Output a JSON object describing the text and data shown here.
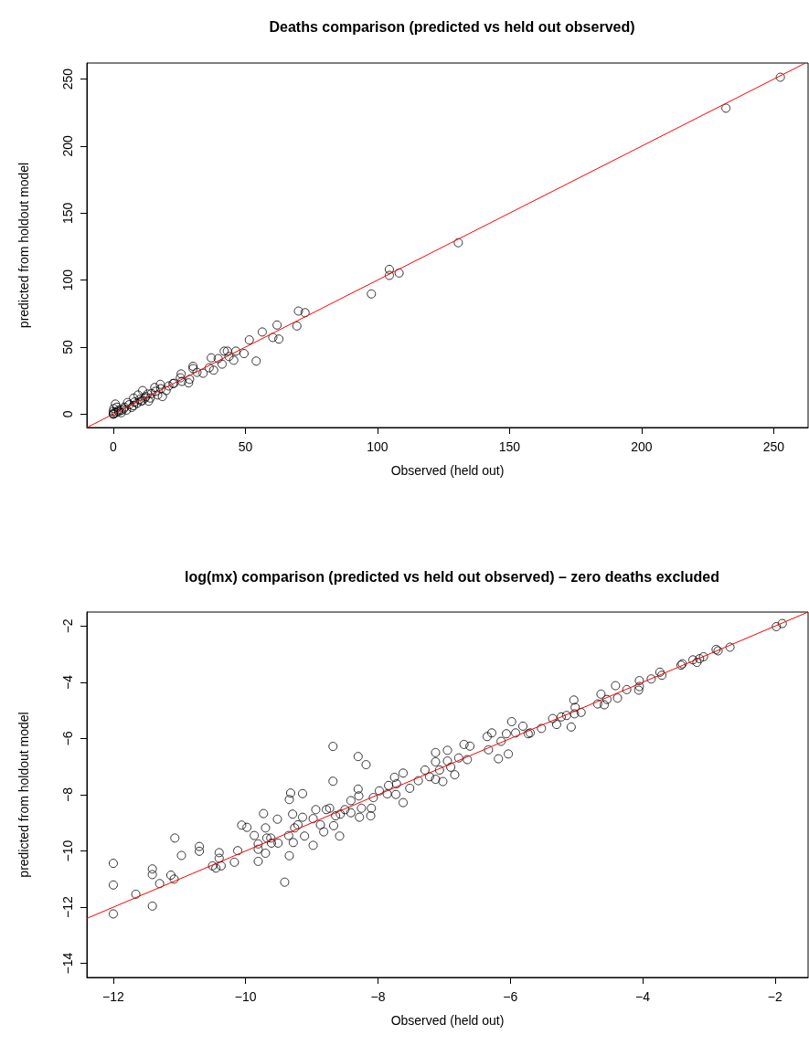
{
  "chart_data": [
    {
      "type": "scatter",
      "title": "Deaths comparison (predicted vs held out observed)",
      "xlabel": "Observed (held out)",
      "ylabel": "predicted from holdout model",
      "xlim": [
        -10,
        263
      ],
      "ylim": [
        -10,
        262
      ],
      "xticks": [
        0,
        50,
        100,
        150,
        200,
        250
      ],
      "yticks": [
        0,
        50,
        100,
        150,
        200,
        250
      ],
      "grid": false,
      "marker": "circle",
      "series": [
        {
          "color": "#000000",
          "x": [
            97.7,
            104.5,
            104.5,
            108.2,
            70.1,
            72.6,
            69.5,
            62,
            60.4,
            62.7,
            56.4,
            51.5,
            54.1,
            49.5,
            46.4,
            45.6,
            42,
            43.2,
            43.8,
            41.2,
            39.7,
            37.1,
            38,
            36.3,
            34,
            31.7,
            30.2,
            30.2,
            28.5,
            28.9,
            25.7,
            25.4,
            26,
            22.6,
            20,
            17.8,
            15.7,
            18.6,
            14.5,
            12.3,
            11.1,
            10.5,
            7.7,
            7.7,
            5.4,
            4.2,
            3.1,
            1.4,
            0.2,
            0.2,
            0,
            0.8,
            2,
            9.4,
            16.8,
            13.4,
            130.6,
            231.9,
            252.5,
            0,
            0,
            1,
            2,
            3,
            4,
            5,
            6,
            7,
            8,
            9,
            10,
            11,
            12,
            13,
            14,
            16,
            18,
            21,
            23
          ],
          "values": [
            89.7,
            108,
            103.5,
            105.3,
            76.9,
            75.7,
            65.8,
            66.5,
            57.2,
            56,
            61.3,
            55.4,
            39.6,
            45.2,
            47,
            40.2,
            47,
            47,
            43,
            37.3,
            41.4,
            42,
            32.8,
            34.6,
            30.5,
            31.2,
            35.7,
            34,
            23.3,
            26,
            30,
            27.1,
            24.4,
            22.8,
            17.6,
            22.2,
            19.9,
            13.1,
            15.4,
            13.1,
            17.6,
            9.7,
            12,
            6.3,
            8.6,
            5.2,
            2.9,
            5.2,
            4.1,
            0.7,
            0,
            7.5,
            1.8,
            14.3,
            14.3,
            9.7,
            127.9,
            228.3,
            251.4,
            0,
            2,
            1,
            3,
            1,
            4,
            3,
            7,
            5,
            9,
            8,
            11,
            10,
            12,
            15,
            12,
            17,
            19,
            21,
            23
          ]
        },
        {
          "type": "line",
          "color": "#ff0000",
          "x": [
            -10,
            262
          ],
          "values": [
            -10,
            262
          ],
          "marker": "none",
          "line_style": "solid"
        }
      ]
    },
    {
      "type": "scatter",
      "title": "log(mx) comparison (predicted vs held out observed) – zero deaths excluded",
      "xlabel": "Observed (held out)",
      "ylabel": "predicted from holdout model",
      "xlim": [
        -12.4,
        -1.5
      ],
      "ylim": [
        -14.5,
        -1.5
      ],
      "xticks": [
        -12,
        -10,
        -8,
        -6,
        -4,
        -2
      ],
      "yticks": [
        -14,
        -12,
        -10,
        -8,
        -6,
        -4,
        -2
      ],
      "grid": false,
      "marker": "circle",
      "series": [
        {
          "color": "#000000",
          "x": [
            -12,
            -12,
            -12,
            -11.66,
            -11.41,
            -11.41,
            -11.41,
            -11.3,
            -11.13,
            -11.08,
            -11.07,
            -10.97,
            -10.7,
            -10.7,
            -10.5,
            -10.45,
            -10.4,
            -10.4,
            -10.37,
            -10.17,
            -10.12,
            -10.06,
            -9.98,
            -9.87,
            -9.81,
            -9.81,
            -9.81,
            -9.73,
            -9.7,
            -9.7,
            -9.68,
            -9.61,
            -9.52,
            -9.62,
            -9.51,
            -9.41,
            -9.34,
            -9.34,
            -9.32,
            -9.35,
            -9.29,
            -9.28,
            -9.26,
            -9.21,
            -9.14,
            -9.14,
            -9.11,
            -8.98,
            -8.98,
            -8.94,
            -8.87,
            -8.82,
            -8.78,
            -8.73,
            -8.68,
            -8.68,
            -8.67,
            -8.64,
            -8.58,
            -8.57,
            -8.5,
            -8.41,
            -8.41,
            -8.3,
            -8.3,
            -8.29,
            -8.28,
            -8.25,
            -8.18,
            -8.11,
            -8.1,
            -8.07,
            -7.98,
            -7.86,
            -7.84,
            -7.75,
            -7.72,
            -7.73,
            -7.62,
            -7.62,
            -7.52,
            -7.39,
            -7.29,
            -7.22,
            -7.13,
            -7.13,
            -7.13,
            -7.07,
            -7.02,
            -6.95,
            -6.95,
            -6.9,
            -6.84,
            -6.78,
            -6.7,
            -6.65,
            -6.61,
            -6.35,
            -6.33,
            -6.28,
            -6.18,
            -6.14,
            -6.06,
            -6.03,
            -5.98,
            -5.92,
            -5.81,
            -5.73,
            -5.7,
            -5.53,
            -5.36,
            -5.3,
            -5.23,
            -5.15,
            -5.08,
            -5.04,
            -5.02,
            -5.03,
            -4.93,
            -4.68,
            -4.63,
            -4.58,
            -4.54,
            -4.41,
            -4.38,
            -4.24,
            -4.05,
            -4.05,
            -4.06,
            -3.87,
            -3.74,
            -3.71,
            -3.42,
            -3.4,
            -3.24,
            -3.18,
            -3.14,
            -3.08,
            -2.89,
            -2.86,
            -2.68,
            -1.98,
            -1.89
          ],
          "values": [
            -10.44,
            -11.21,
            -12.24,
            -11.54,
            -10.64,
            -10.84,
            -11.96,
            -11.16,
            -10.86,
            -11,
            -9.54,
            -10.16,
            -9.84,
            -10.01,
            -10.53,
            -10.61,
            -10.06,
            -10.26,
            -10.53,
            -10.4,
            -9.99,
            -9.08,
            -9.16,
            -9.45,
            -9.75,
            -9.94,
            -10.37,
            -8.67,
            -9.18,
            -10.08,
            -9.54,
            -9.72,
            -8.87,
            -9.54,
            -9.72,
            -11.11,
            -10.17,
            -8.17,
            -7.94,
            -9.45,
            -8.69,
            -9.7,
            -9.18,
            -9.07,
            -7.96,
            -8.8,
            -9.47,
            -9.8,
            -8.85,
            -8.53,
            -9.07,
            -9.32,
            -8.53,
            -8.48,
            -6.28,
            -7.52,
            -9.1,
            -8.75,
            -9.47,
            -8.69,
            -8.53,
            -8.21,
            -8.64,
            -6.64,
            -7.8,
            -8.04,
            -8.8,
            -8.48,
            -6.93,
            -8.75,
            -8.48,
            -8.1,
            -7.86,
            -7.97,
            -7.67,
            -7.38,
            -7.61,
            -7.99,
            -7.23,
            -8.28,
            -7.77,
            -7.5,
            -7.12,
            -7.36,
            -6.5,
            -6.83,
            -7.45,
            -7.12,
            -7.53,
            -6.42,
            -6.8,
            -7.02,
            -7.29,
            -6.69,
            -6.21,
            -6.75,
            -6.27,
            -5.93,
            -6.4,
            -5.8,
            -6.72,
            -6.1,
            -5.83,
            -6.55,
            -5.4,
            -5.8,
            -5.56,
            -5.83,
            -5.8,
            -5.64,
            -5.29,
            -5.5,
            -5.23,
            -5.18,
            -5.59,
            -4.63,
            -4.89,
            -5.12,
            -5.07,
            -4.77,
            -4.42,
            -4.8,
            -4.61,
            -4.12,
            -4.56,
            -4.26,
            -3.94,
            -4.15,
            -4.28,
            -3.88,
            -3.64,
            -3.75,
            -3.39,
            -3.34,
            -3.2,
            -3.29,
            -3.16,
            -3.09,
            -2.83,
            -2.88,
            -2.75,
            -2.02,
            -1.91
          ]
        },
        {
          "type": "line",
          "color": "#ff0000",
          "x": [
            -12.4,
            -1.5
          ],
          "values": [
            -12.4,
            -1.5
          ],
          "marker": "none",
          "line_style": "solid"
        }
      ]
    }
  ]
}
